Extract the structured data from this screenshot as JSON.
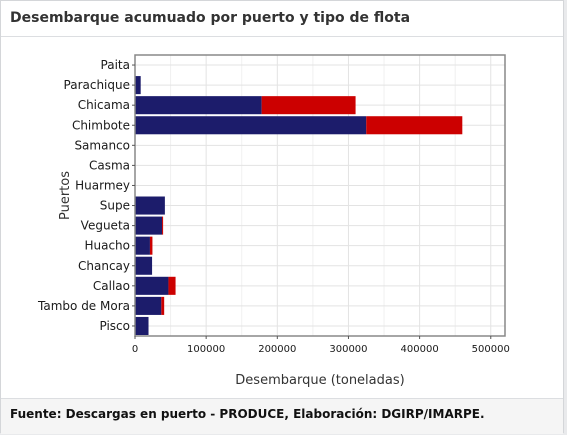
{
  "panel": {
    "title": "Desembarque acumuado por puerto y tipo de flota",
    "footnote": "Fuente: Descargas en puerto - PRODUCE, Elaboración: DGIRP/IMARPE."
  },
  "chart_data": {
    "type": "bar",
    "orientation": "horizontal",
    "stacked": true,
    "xlabel": "Desembarque (toneladas)",
    "ylabel": "Puertos",
    "xlim": [
      0,
      520000
    ],
    "xticks": [
      0,
      100000,
      200000,
      300000,
      400000,
      500000
    ],
    "grid": true,
    "categories": [
      "Paita",
      "Parachique",
      "Chicama",
      "Chimbote",
      "Samanco",
      "Casma",
      "Huarmey",
      "Supe",
      "Vegueta",
      "Huacho",
      "Chancay",
      "Callao",
      "Tambo de Mora",
      "Pisco"
    ],
    "series": [
      {
        "color": "#1c1c6b",
        "values": [
          0,
          8000,
          178000,
          325000,
          0,
          0,
          0,
          42000,
          38000,
          21000,
          24000,
          47000,
          37000,
          19000
        ]
      },
      {
        "color": "#cc0000",
        "values": [
          0,
          0,
          132000,
          135000,
          0,
          0,
          0,
          0,
          1500,
          3500,
          0,
          10000,
          4000,
          0
        ]
      }
    ]
  }
}
